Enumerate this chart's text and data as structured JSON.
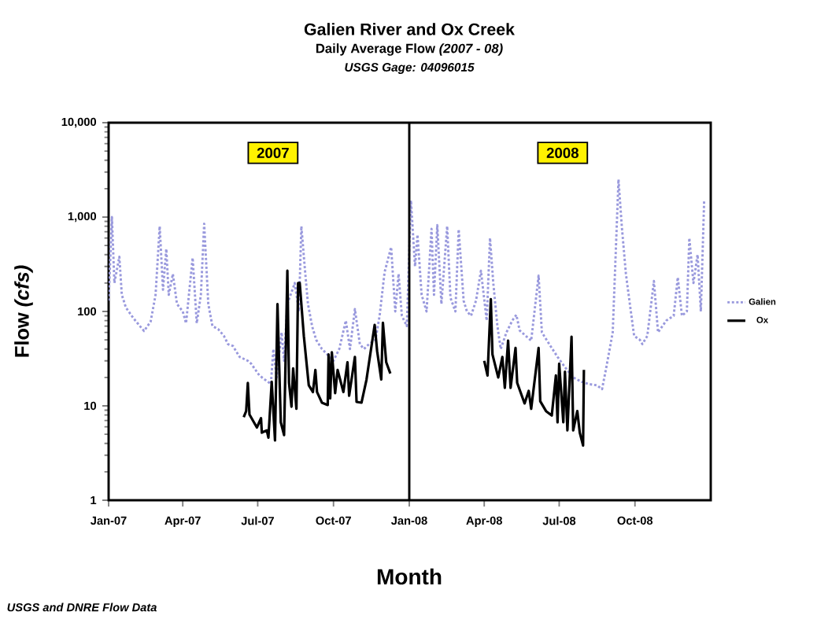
{
  "chart_data": {
    "type": "line",
    "title": "Galien River and Ox Creek",
    "subtitle": "Daily Average Flow *(2007 - 08)*",
    "xlabel": "Month",
    "ylabel": "Flow  *(cfs)*",
    "annotations": [
      "USGS Gage: 04096015",
      "2007",
      "2008",
      "USGS and DNRE Flow Data"
    ],
    "log": "y",
    "legend": "right",
    "marker": "none",
    "grid": false,
    "xlim": [
      "2007-01-01",
      "2009-01-01"
    ],
    "xticks": [
      {
        "value": "2007-01-01",
        "label": "Jan-07"
      },
      {
        "value": "2007-04-01",
        "label": "Apr-07"
      },
      {
        "value": "2007-07-01",
        "label": "Jul-07"
      },
      {
        "value": "2007-10-01",
        "label": "Oct-07"
      },
      {
        "value": "2008-01-01",
        "label": "Jan-08"
      },
      {
        "value": "2008-04-01",
        "label": "Apr-08"
      },
      {
        "value": "2008-07-01",
        "label": "Jul-08"
      },
      {
        "value": "2008-10-01",
        "label": "Oct-08"
      }
    ],
    "ylim": [
      1,
      10000
    ],
    "yticks": [
      1,
      10,
      100,
      {
        "value": 1000,
        "label": "1,000"
      },
      {
        "value": 10000,
        "label": "10,000"
      }
    ],
    "ref_lines": [
      {
        "axis": "x",
        "value": "2008-01-01",
        "color": "#000000",
        "line_style": "solid"
      }
    ],
    "series": [
      {
        "name": "Galien",
        "color": "#9999dd",
        "line_style": "dotted",
        "x": [
          "2007-01-01",
          "2007-01-05",
          "2007-01-08",
          "2007-01-14",
          "2007-01-17",
          "2007-01-22",
          "2007-01-31",
          "2007-02-13",
          "2007-02-21",
          "2007-02-27",
          "2007-03-04",
          "2007-03-08",
          "2007-03-12",
          "2007-03-15",
          "2007-03-20",
          "2007-03-25",
          "2007-04-01",
          "2007-04-05",
          "2007-04-13",
          "2007-04-18",
          "2007-04-23",
          "2007-04-27",
          "2007-05-02",
          "2007-05-07",
          "2007-05-14",
          "2007-05-21",
          "2007-05-26",
          "2007-06-01",
          "2007-06-09",
          "2007-06-19",
          "2007-06-23",
          "2007-07-03",
          "2007-07-17",
          "2007-07-20",
          "2007-07-24",
          "2007-07-30",
          "2007-08-02",
          "2007-08-06",
          "2007-08-15",
          "2007-08-20",
          "2007-08-23",
          "2007-08-27",
          "2007-08-31",
          "2007-09-05",
          "2007-09-10",
          "2007-09-17",
          "2007-09-25",
          "2007-10-01",
          "2007-10-08",
          "2007-10-16",
          "2007-10-21",
          "2007-10-27",
          "2007-11-02",
          "2007-11-07",
          "2007-11-13",
          "2007-11-21",
          "2007-11-26",
          "2007-12-02",
          "2007-12-10",
          "2007-12-15",
          "2007-12-19",
          "2007-12-23",
          "2007-12-29",
          "2008-01-03",
          "2008-01-08",
          "2008-01-11",
          "2008-01-16",
          "2008-01-22",
          "2008-01-28",
          "2008-01-31",
          "2008-02-04",
          "2008-02-09",
          "2008-02-16",
          "2008-02-20",
          "2008-02-26",
          "2008-03-01",
          "2008-03-07",
          "2008-03-11",
          "2008-03-16",
          "2008-03-22",
          "2008-03-28",
          "2008-04-04",
          "2008-04-08",
          "2008-04-12",
          "2008-04-17",
          "2008-04-21",
          "2008-04-28",
          "2008-05-05",
          "2008-05-10",
          "2008-05-14",
          "2008-05-28",
          "2008-06-06",
          "2008-06-10",
          "2008-06-19",
          "2008-06-29",
          "2008-07-09",
          "2008-07-18",
          "2008-07-28",
          "2008-08-06",
          "2008-08-16",
          "2008-08-22",
          "2008-08-27",
          "2008-09-04",
          "2008-09-11",
          "2008-09-15",
          "2008-09-20",
          "2008-09-26",
          "2008-09-30",
          "2008-10-07",
          "2008-10-10",
          "2008-10-16",
          "2008-10-24",
          "2008-10-29",
          "2008-11-08",
          "2008-11-17",
          "2008-11-22",
          "2008-11-27",
          "2008-12-03",
          "2008-12-06",
          "2008-12-11",
          "2008-12-16",
          "2008-12-20",
          "2008-12-24"
        ],
        "values": [
          130,
          1000,
          200,
          380,
          150,
          110,
          85,
          62,
          78,
          150,
          800,
          170,
          460,
          150,
          250,
          120,
          100,
          75,
          370,
          75,
          150,
          850,
          120,
          70,
          65,
          55,
          45,
          43,
          33,
          30,
          28,
          21,
          17,
          40,
          20,
          60,
          30,
          120,
          200,
          100,
          800,
          300,
          120,
          70,
          50,
          40,
          34,
          30,
          40,
          80,
          40,
          106,
          45,
          40,
          45,
          50,
          90,
          260,
          480,
          100,
          250,
          90,
          70,
          1500,
          300,
          650,
          150,
          100,
          750,
          150,
          820,
          120,
          800,
          140,
          100,
          740,
          130,
          100,
          90,
          130,
          270,
          80,
          600,
          200,
          70,
          40,
          60,
          80,
          92,
          63,
          49,
          240,
          60,
          45,
          33,
          25,
          20,
          18,
          17,
          16.5,
          15,
          25,
          60,
          2500,
          800,
          250,
          100,
          55,
          50,
          45,
          55,
          210,
          60,
          80,
          90,
          230,
          90,
          100,
          600,
          200,
          400,
          100,
          1500
        ]
      },
      {
        "name": "Ox",
        "color": "#000000",
        "line_style": "solid",
        "x": [
          "2007-06-14",
          "2007-06-17",
          "2007-06-19",
          "2007-06-21",
          "2007-06-30",
          "2007-07-05",
          "2007-07-06",
          "2007-07-12",
          "2007-07-14",
          "2007-07-18",
          "2007-07-22",
          "2007-07-25",
          "2007-07-29",
          "2007-08-02",
          "2007-08-06",
          "2007-08-08",
          "2007-08-11",
          "2007-08-13",
          "2007-08-17",
          "2007-08-19",
          "2007-08-21",
          "2007-08-26",
          "2007-09-01",
          "2007-09-06",
          "2007-09-09",
          "2007-09-11",
          "2007-09-17",
          "2007-09-24",
          "2007-09-25",
          "2007-09-27",
          "2007-09-29",
          "2007-10-03",
          "2007-10-06",
          "2007-10-13",
          "2007-10-18",
          "2007-10-20",
          "2007-10-27",
          "2007-10-29",
          "2007-11-04",
          "2007-11-10",
          "2007-11-20",
          "2007-11-23",
          "2007-11-28",
          "2007-11-30",
          "2007-12-04",
          "2007-12-09",
          null,
          "2008-04-01",
          "2008-04-05",
          "2008-04-09",
          "2008-04-11",
          "2008-04-18",
          "2008-04-23",
          "2008-04-26",
          "2008-04-30",
          "2008-05-03",
          "2008-05-09",
          "2008-05-11",
          "2008-05-20",
          "2008-05-25",
          "2008-05-28",
          "2008-06-06",
          "2008-06-08",
          "2008-06-15",
          "2008-06-22",
          "2008-06-27",
          "2008-06-29",
          "2008-07-01",
          "2008-07-06",
          "2008-07-08",
          "2008-07-11",
          "2008-07-16",
          "2008-07-18",
          "2008-07-23",
          "2008-07-26",
          "2008-07-30",
          "2008-07-31"
        ],
        "values": [
          7.6,
          8.8,
          17.5,
          8.1,
          5.9,
          7.4,
          5.2,
          5.5,
          4.6,
          18,
          4.3,
          120,
          6.7,
          4.9,
          270,
          17.5,
          9.8,
          25,
          9.3,
          200,
          200,
          55,
          16.5,
          14,
          24,
          14,
          10.8,
          10.2,
          35,
          12,
          37,
          13.6,
          24,
          14,
          29,
          12.8,
          33,
          11,
          10.8,
          18.8,
          72,
          38,
          19,
          76,
          29,
          22,
          null,
          30,
          21,
          135,
          35,
          20,
          33,
          15.5,
          49,
          15.5,
          41,
          17.5,
          10.6,
          14.4,
          9.3,
          41,
          11.2,
          8.8,
          7.9,
          21,
          6.7,
          28,
          6.7,
          23,
          5.5,
          54,
          5.5,
          8.8,
          5.2,
          3.8,
          24
        ]
      }
    ]
  }
}
